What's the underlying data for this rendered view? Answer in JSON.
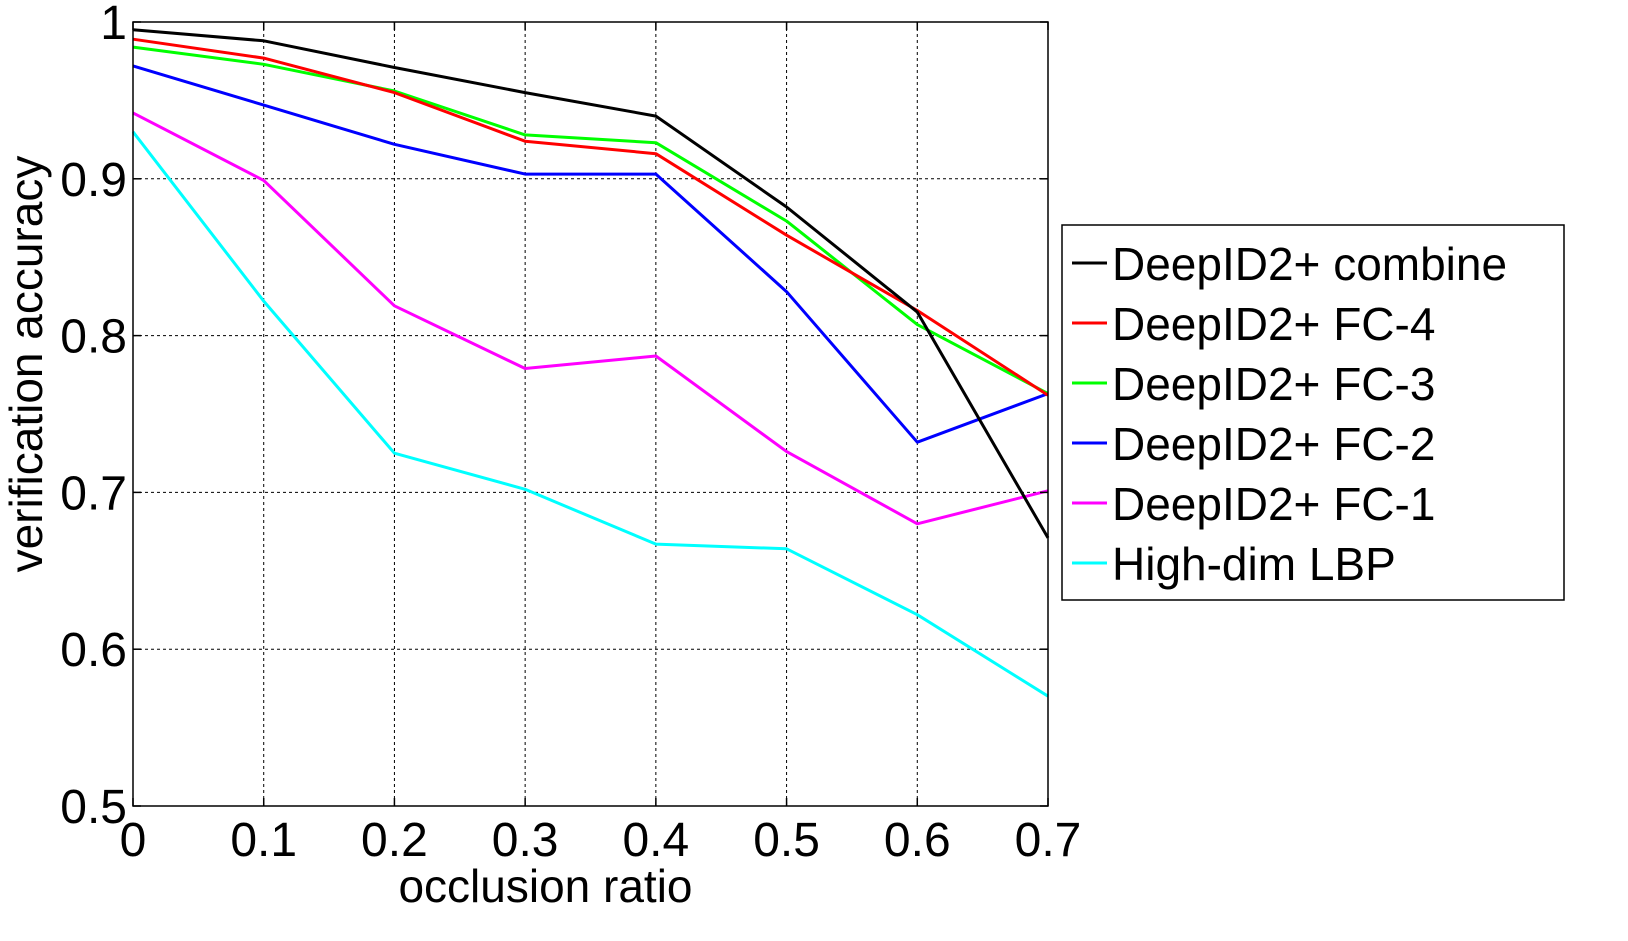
{
  "chart_data": {
    "type": "line",
    "xlabel": "occlusion ratio",
    "ylabel": "verification accuracy",
    "xlim": [
      0,
      0.7
    ],
    "ylim": [
      0.5,
      1
    ],
    "grid": true,
    "legend_position": "right",
    "x": [
      0,
      0.1,
      0.2,
      0.3,
      0.4,
      0.5,
      0.6,
      0.7
    ],
    "x_tick_labels": [
      "0",
      "0.1",
      "0.2",
      "0.3",
      "0.4",
      "0.5",
      "0.6",
      "0.7"
    ],
    "y_ticks": [
      0.5,
      0.6,
      0.7,
      0.8,
      0.9,
      1
    ],
    "y_tick_labels": [
      "0.5",
      "0.6",
      "0.7",
      "0.8",
      "0.9",
      "1"
    ],
    "series": [
      {
        "name": "DeepID2+ combine",
        "color": "#000000",
        "values": [
          0.995,
          0.988,
          0.971,
          0.955,
          0.94,
          0.882,
          0.815,
          0.671
        ]
      },
      {
        "name": "DeepID2+ FC-4",
        "color": "#ff0000",
        "values": [
          0.989,
          0.977,
          0.955,
          0.924,
          0.916,
          0.864,
          0.816,
          0.762
        ]
      },
      {
        "name": "DeepID2+ FC-3",
        "color": "#00ff00",
        "values": [
          0.984,
          0.973,
          0.956,
          0.928,
          0.923,
          0.873,
          0.807,
          0.763
        ]
      },
      {
        "name": "DeepID2+ FC-2",
        "color": "#0000ff",
        "values": [
          0.972,
          0.947,
          0.922,
          0.903,
          0.903,
          0.828,
          0.732,
          0.763
        ]
      },
      {
        "name": "DeepID2+ FC-1",
        "color": "#ff00ff",
        "values": [
          0.942,
          0.899,
          0.819,
          0.779,
          0.787,
          0.726,
          0.68,
          0.701
        ]
      },
      {
        "name": "High-dim LBP",
        "color": "#00ffff",
        "values": [
          0.93,
          0.822,
          0.725,
          0.702,
          0.667,
          0.664,
          0.622,
          0.57
        ]
      }
    ]
  }
}
